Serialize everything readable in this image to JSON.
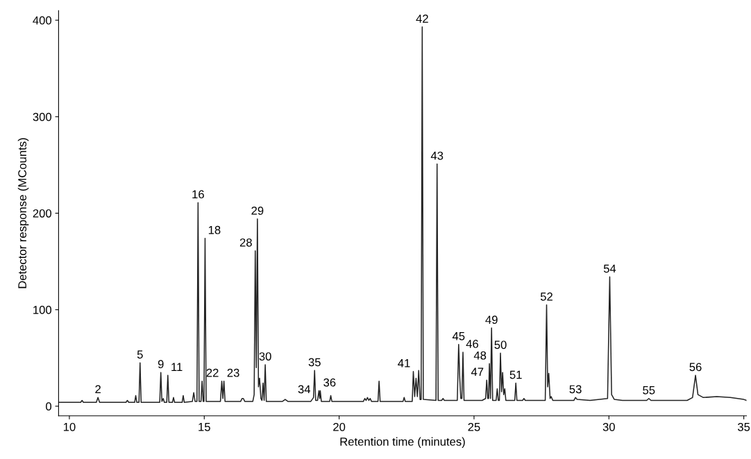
{
  "chart_data": {
    "type": "line",
    "xlabel": "Retention time (minutes)",
    "ylabel": "Detector response (MCounts)",
    "xlim": [
      9.6,
      35.1
    ],
    "ylim": [
      -10,
      410
    ],
    "xticks": [
      10,
      15,
      20,
      25,
      30,
      35
    ],
    "yticks": [
      0,
      100,
      200,
      300,
      400
    ],
    "series": [
      {
        "color": "#222222",
        "x": [
          9.6,
          10.42,
          10.47,
          10.52,
          11.0,
          11.06,
          11.12,
          12.1,
          12.15,
          12.2,
          12.42,
          12.46,
          12.5,
          12.58,
          12.62,
          12.66,
          13.35,
          13.39,
          13.43,
          13.48,
          13.52,
          13.61,
          13.65,
          13.69,
          13.82,
          13.86,
          13.9,
          14.18,
          14.22,
          14.26,
          14.56,
          14.61,
          14.66,
          14.73,
          14.77,
          14.81,
          14.88,
          14.92,
          14.96,
          14.99,
          15.03,
          15.07,
          15.6,
          15.65,
          15.69,
          15.73,
          15.77,
          16.35,
          16.4,
          16.45,
          16.5,
          16.8,
          16.85,
          16.89,
          16.93,
          16.97,
          17.01,
          17.05,
          17.1,
          17.14,
          17.18,
          17.22,
          17.26,
          17.3,
          17.9,
          18.0,
          18.1,
          18.95,
          19.05,
          19.09,
          19.13,
          19.2,
          19.25,
          19.28,
          19.3,
          19.34,
          19.65,
          19.69,
          19.73,
          20.9,
          20.95,
          21.0,
          21.05,
          21.1,
          21.15,
          21.2,
          21.44,
          21.48,
          21.52,
          22.37,
          22.41,
          22.45,
          22.71,
          22.75,
          22.8,
          22.85,
          22.9,
          22.95,
          23.0,
          23.04,
          23.08,
          23.12,
          23.59,
          23.63,
          23.67,
          23.8,
          23.85,
          23.9,
          24.38,
          24.43,
          24.47,
          24.51,
          24.55,
          24.59,
          24.63,
          25.3,
          25.43,
          25.47,
          25.51,
          25.54,
          25.57,
          25.61,
          25.65,
          25.69,
          25.82,
          25.86,
          25.9,
          25.94,
          25.98,
          26.02,
          26.06,
          26.1,
          26.14,
          26.18,
          26.51,
          26.55,
          26.59,
          26.8,
          26.85,
          26.9,
          27.64,
          27.69,
          27.73,
          27.77,
          27.82,
          27.86,
          27.92,
          28.7,
          28.76,
          28.82,
          29.3,
          29.95,
          30.03,
          30.1,
          30.2,
          30.5,
          31.4,
          31.48,
          31.56,
          32.9,
          33.1,
          33.21,
          33.3,
          33.5,
          34.0,
          34.5,
          35.0,
          35.1
        ],
        "values": [
          4,
          4,
          6,
          4,
          4,
          9,
          4,
          4,
          6,
          4,
          4,
          11,
          4,
          4,
          45,
          4,
          4,
          35,
          5,
          8,
          4,
          4,
          32,
          4,
          4,
          9,
          4,
          4,
          11,
          4,
          5,
          14,
          5,
          5,
          211,
          5,
          5,
          26,
          5,
          5,
          174,
          5,
          5,
          26,
          8,
          26,
          5,
          5,
          8,
          8,
          5,
          5,
          12,
          161,
          40,
          194,
          20,
          29,
          8,
          6,
          24,
          6,
          43,
          5,
          5,
          7,
          5,
          5,
          9,
          37,
          6,
          6,
          16,
          8,
          16,
          5,
          5,
          11,
          5,
          5,
          8,
          6,
          9,
          6,
          8,
          5,
          5,
          26,
          5,
          5,
          9,
          5,
          5,
          36,
          10,
          29,
          10,
          37,
          7,
          7,
          393,
          7,
          6,
          251,
          6,
          6,
          8,
          6,
          6,
          64,
          30,
          8,
          8,
          56,
          6,
          6,
          8,
          27,
          8,
          8,
          44,
          8,
          81,
          6,
          6,
          18,
          6,
          6,
          55,
          15,
          35,
          12,
          18,
          6,
          6,
          24,
          6,
          6,
          8,
          6,
          6,
          105,
          20,
          34,
          8,
          10,
          6,
          6,
          9,
          7,
          6,
          8,
          134,
          12,
          7,
          6,
          6,
          8,
          6,
          6,
          9,
          32,
          12,
          9,
          10,
          9,
          7,
          6
        ]
      }
    ],
    "annotations": [
      {
        "text": "2",
        "x": 11.06,
        "y": 9
      },
      {
        "text": "5",
        "x": 12.62,
        "y": 45
      },
      {
        "text": "9",
        "x": 13.39,
        "y": 35
      },
      {
        "text": "11",
        "x": 13.65,
        "y": 32
      },
      {
        "text": "16",
        "x": 14.77,
        "y": 211
      },
      {
        "text": "18",
        "x": 15.03,
        "y": 174
      },
      {
        "text": "22",
        "x": 15.65,
        "y": 26
      },
      {
        "text": "23",
        "x": 15.73,
        "y": 26
      },
      {
        "text": "28",
        "x": 16.89,
        "y": 161
      },
      {
        "text": "29",
        "x": 16.97,
        "y": 194
      },
      {
        "text": "30",
        "x": 17.26,
        "y": 43
      },
      {
        "text": "34",
        "x": 19.05,
        "y": 9
      },
      {
        "text": "35",
        "x": 19.09,
        "y": 37
      },
      {
        "text": "36",
        "x": 19.25,
        "y": 16
      },
      {
        "text": "41",
        "x": 22.75,
        "y": 36
      },
      {
        "text": "42",
        "x": 23.08,
        "y": 393
      },
      {
        "text": "43",
        "x": 23.63,
        "y": 251
      },
      {
        "text": "45",
        "x": 24.43,
        "y": 64
      },
      {
        "text": "46",
        "x": 24.59,
        "y": 56
      },
      {
        "text": "47",
        "x": 25.47,
        "y": 27
      },
      {
        "text": "48",
        "x": 25.57,
        "y": 44
      },
      {
        "text": "49",
        "x": 25.65,
        "y": 81
      },
      {
        "text": "50",
        "x": 25.98,
        "y": 55
      },
      {
        "text": "51",
        "x": 26.55,
        "y": 24
      },
      {
        "text": "52",
        "x": 27.69,
        "y": 105
      },
      {
        "text": "53",
        "x": 28.76,
        "y": 9
      },
      {
        "text": "54",
        "x": 30.03,
        "y": 134
      },
      {
        "text": "55",
        "x": 31.48,
        "y": 8
      },
      {
        "text": "56",
        "x": 33.21,
        "y": 32
      }
    ]
  }
}
